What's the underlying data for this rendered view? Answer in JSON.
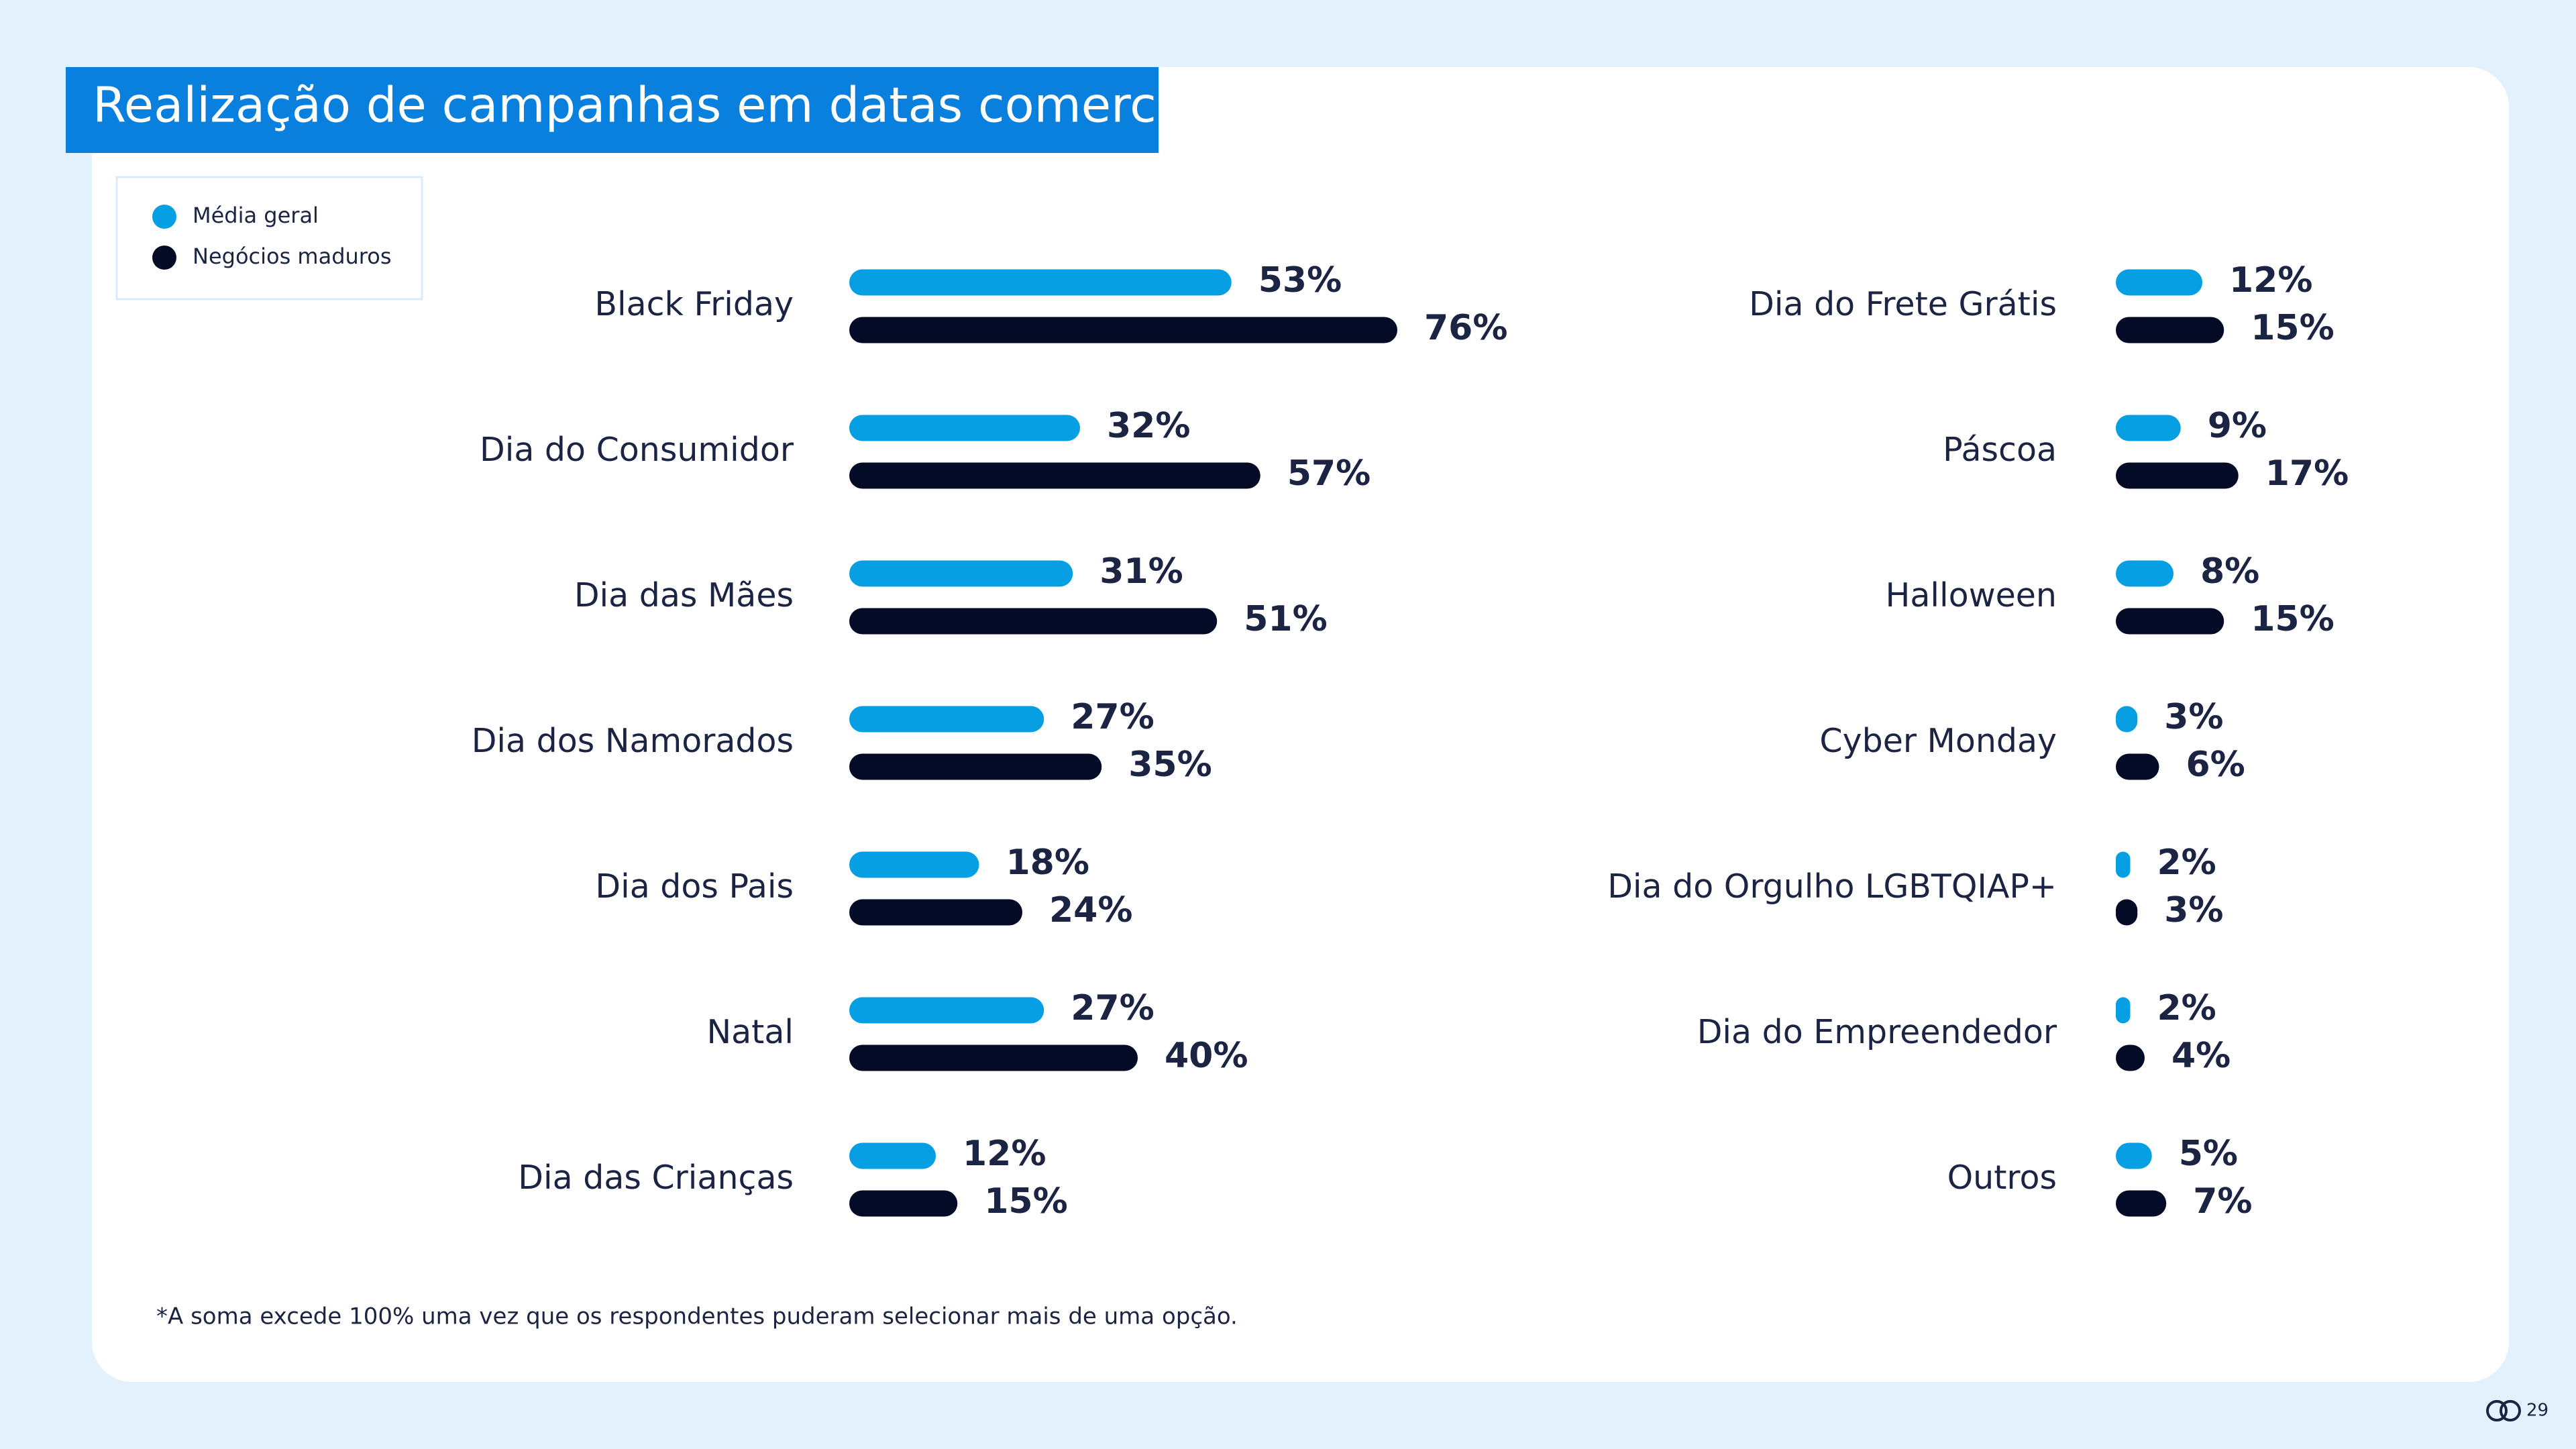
{
  "title": "Realização de campanhas em datas comerciais",
  "footnote": "*A soma excede 100% uma vez que os respondentes puderam selecionar mais de uma opção.",
  "page_number": "29",
  "chart_data": [
    {
      "type": "bar",
      "orientation": "horizontal",
      "categories": [
        "Black Friday",
        "Dia do Consumidor",
        "Dia das Mães",
        "Dia dos Namorados",
        "Dia dos Pais",
        "Natal",
        "Dia das Crianças"
      ],
      "series": [
        {
          "name": "Média geral",
          "color": "#079fe3",
          "values": [
            53,
            32,
            31,
            27,
            18,
            27,
            12
          ],
          "value_labels": [
            "53%",
            "32%",
            "31%",
            "27%",
            "18%",
            "27%",
            "12%"
          ]
        },
        {
          "name": "Negócios maduros",
          "color": "#040b26",
          "values": [
            76,
            57,
            51,
            35,
            24,
            40,
            15
          ],
          "value_labels": [
            "76%",
            "57%",
            "51%",
            "35%",
            "24%",
            "40%",
            "15%"
          ]
        }
      ]
    },
    {
      "type": "bar",
      "orientation": "horizontal",
      "categories": [
        "Dia do Frete Grátis",
        "Páscoa",
        "Halloween",
        "Cyber Monday",
        "Dia do Orgulho LGBTQIAP+",
        "Dia do Empreendedor",
        "Outros"
      ],
      "series": [
        {
          "name": "Média geral",
          "color": "#079fe3",
          "values": [
            12,
            9,
            8,
            3,
            2,
            2,
            5
          ],
          "value_labels": [
            "12%",
            "9%",
            "8%",
            "3%",
            "2%",
            "2%",
            "5%"
          ]
        },
        {
          "name": "Negócios maduros",
          "color": "#040b26",
          "values": [
            15,
            17,
            15,
            6,
            3,
            4,
            7
          ],
          "value_labels": [
            "15%",
            "17%",
            "15%",
            "6%",
            "3%",
            "4%",
            "7%"
          ]
        }
      ]
    }
  ]
}
